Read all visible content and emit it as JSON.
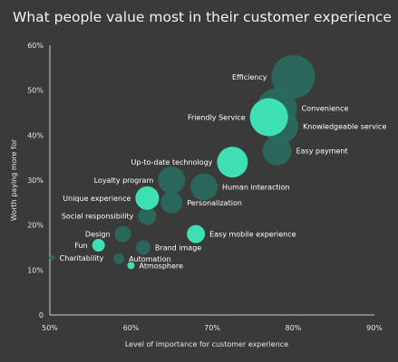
{
  "chart_data": {
    "type": "scatter",
    "title": "What people value most in their customer experience",
    "xlabel": "Level of importance for customer experience",
    "ylabel": "Worth paying more for",
    "xlim": [
      50,
      90
    ],
    "ylim": [
      0,
      60
    ],
    "x_ticks": [
      "50%",
      "60%",
      "70%",
      "80%",
      "90%"
    ],
    "y_ticks": [
      "0",
      "10%",
      "20%",
      "30%",
      "40%",
      "50%",
      "60%"
    ],
    "grid": false,
    "colors": {
      "highlight": "#3ee8b8",
      "muted": "#2a6b5f",
      "background": "#3a3a3a"
    },
    "points": [
      {
        "label": "Efficiency",
        "x": 80,
        "y": 53,
        "size": 24,
        "highlight": false,
        "label_pos": "left"
      },
      {
        "label": "Convenience",
        "x": 78,
        "y": 46,
        "size": 22,
        "highlight": false,
        "label_pos": "right"
      },
      {
        "label": "Knowledgeable service",
        "x": 78.5,
        "y": 42,
        "size": 19,
        "highlight": false,
        "label_pos": "right"
      },
      {
        "label": "Friendly Service",
        "x": 77,
        "y": 44,
        "size": 21,
        "highlight": true,
        "label_pos": "left"
      },
      {
        "label": "Easy payment",
        "x": 78,
        "y": 36.5,
        "size": 16,
        "highlight": false,
        "label_pos": "right"
      },
      {
        "label": "Up-to-date technology",
        "x": 72.5,
        "y": 34,
        "size": 17,
        "highlight": true,
        "label_pos": "left"
      },
      {
        "label": "Human interaction",
        "x": 69,
        "y": 28.5,
        "size": 15,
        "highlight": false,
        "label_pos": "right"
      },
      {
        "label": "Loyalty program",
        "x": 65,
        "y": 30,
        "size": 15,
        "highlight": false,
        "label_pos": "left"
      },
      {
        "label": "Personalization",
        "x": 65,
        "y": 25,
        "size": 12,
        "highlight": false,
        "label_pos": "right"
      },
      {
        "label": "Unique experience",
        "x": 62,
        "y": 26,
        "size": 13,
        "highlight": true,
        "label_pos": "left"
      },
      {
        "label": "Social responsibility",
        "x": 62,
        "y": 22,
        "size": 10,
        "highlight": false,
        "label_pos": "left"
      },
      {
        "label": "Easy mobile experience",
        "x": 68,
        "y": 18,
        "size": 10,
        "highlight": true,
        "label_pos": "right"
      },
      {
        "label": "Design",
        "x": 59,
        "y": 18,
        "size": 9,
        "highlight": false,
        "label_pos": "left"
      },
      {
        "label": "Brand image",
        "x": 61.5,
        "y": 15,
        "size": 8,
        "highlight": false,
        "label_pos": "right"
      },
      {
        "label": "Fun",
        "x": 56,
        "y": 15.5,
        "size": 7,
        "highlight": true,
        "label_pos": "left"
      },
      {
        "label": "Automation",
        "x": 58.5,
        "y": 12.5,
        "size": 6,
        "highlight": false,
        "label_pos": "right"
      },
      {
        "label": "Charitability",
        "x": 50.3,
        "y": 12.7,
        "size": 3,
        "highlight": false,
        "label_pos": "right"
      },
      {
        "label": "Atmosphere",
        "x": 60,
        "y": 11,
        "size": 4,
        "highlight": true,
        "label_pos": "right"
      }
    ]
  }
}
